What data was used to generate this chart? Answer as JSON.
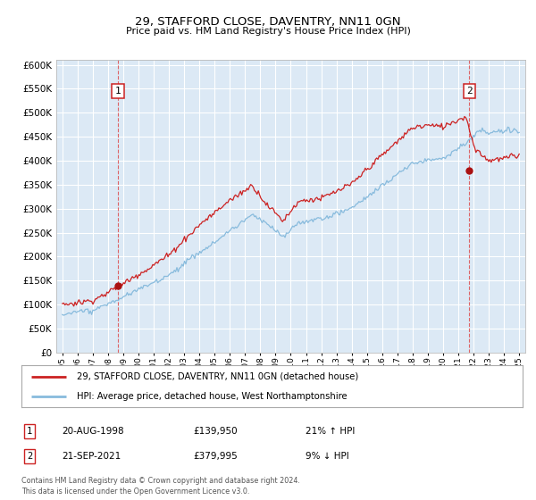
{
  "title": "29, STAFFORD CLOSE, DAVENTRY, NN11 0GN",
  "subtitle": "Price paid vs. HM Land Registry's House Price Index (HPI)",
  "plot_bg_color": "#dce9f5",
  "grid_color": "#ffffff",
  "sale1_year": 1998.64,
  "sale1_price": 139950,
  "sale2_year": 2021.72,
  "sale2_price": 379995,
  "legend_line1": "29, STAFFORD CLOSE, DAVENTRY, NN11 0GN (detached house)",
  "legend_line2": "HPI: Average price, detached house, West Northamptonshire",
  "annotation1_date": "20-AUG-1998",
  "annotation1_price": "£139,950",
  "annotation1_hpi": "21% ↑ HPI",
  "annotation2_date": "21-SEP-2021",
  "annotation2_price": "£379,995",
  "annotation2_hpi": "9% ↓ HPI",
  "footer": "Contains HM Land Registry data © Crown copyright and database right 2024.\nThis data is licensed under the Open Government Licence v3.0.",
  "line_color_property": "#cc2222",
  "line_color_hpi": "#88bbdd",
  "dot_color": "#aa1111",
  "vline_color": "#dd4444",
  "ylim": [
    0,
    600000
  ],
  "yticks": [
    0,
    50000,
    100000,
    150000,
    200000,
    250000,
    300000,
    350000,
    400000,
    450000,
    500000,
    550000,
    600000
  ],
  "xmin": 1995,
  "xmax": 2025
}
